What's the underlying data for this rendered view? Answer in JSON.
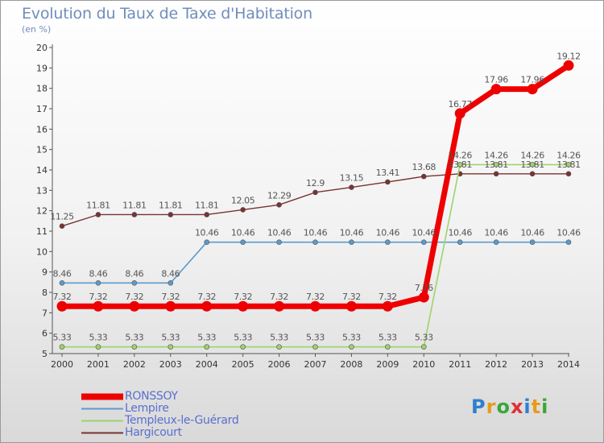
{
  "title": "Evolution du Taux de Taxe d'Habitation",
  "subtitle": "(en %)",
  "logo": {
    "text": "Proxiti",
    "letter_colors": [
      "#2f7fd0",
      "#e89a1a",
      "#3aa63a",
      "#e03030",
      "#2f7fd0",
      "#e89a1a",
      "#3aa63a"
    ]
  },
  "chart_data": {
    "type": "line",
    "x": [
      2000,
      2001,
      2002,
      2003,
      2004,
      2005,
      2006,
      2007,
      2008,
      2009,
      2010,
      2011,
      2012,
      2013,
      2014
    ],
    "ylim": [
      5,
      20
    ],
    "yticks": [
      5,
      6,
      7,
      8,
      9,
      10,
      11,
      12,
      13,
      14,
      15,
      16,
      17,
      18,
      19,
      20
    ],
    "grid": false,
    "legend_position": "bottom-left",
    "series": [
      {
        "name": "Hargicourt",
        "color": "#7a3232",
        "values": [
          11.25,
          11.81,
          11.81,
          11.81,
          11.81,
          12.05,
          12.29,
          12.9,
          13.15,
          13.41,
          13.68,
          13.81,
          13.81,
          13.81,
          13.81
        ],
        "labels": [
          "11.25",
          "11.81",
          "11.81",
          "11.81",
          "11.81",
          "12.05",
          "12.29",
          "12.9",
          "13.15",
          "13.41",
          "13.68",
          "13.81",
          "13.81",
          "13.81",
          "13.81"
        ]
      },
      {
        "name": "Lempire",
        "color": "#5d9acb",
        "values": [
          8.46,
          8.46,
          8.46,
          8.46,
          10.46,
          10.46,
          10.46,
          10.46,
          10.46,
          10.46,
          10.46,
          10.46,
          10.46,
          10.46,
          10.46
        ],
        "labels": [
          "8.46",
          "8.46",
          "8.46",
          "8.46",
          "10.46",
          "10.46",
          "10.46",
          "10.46",
          "10.46",
          "10.46",
          "10.46",
          "10.46",
          "10.46",
          "10.46",
          "10.46"
        ]
      },
      {
        "name": "Templeux-le-Guérard",
        "color": "#9ed36c",
        "values": [
          5.33,
          5.33,
          5.33,
          5.33,
          5.33,
          5.33,
          5.33,
          5.33,
          5.33,
          5.33,
          5.33,
          14.26,
          14.26,
          14.26,
          14.26
        ],
        "labels": [
          "5.33",
          "5.33",
          "5.33",
          "5.33",
          "5.33",
          "5.33",
          "5.33",
          "5.33",
          "5.33",
          "5.33",
          "5.33",
          "14.26",
          "14.26",
          "14.26",
          "14.26"
        ]
      },
      {
        "name": "RONSSOY",
        "color": "#ee0000",
        "values": [
          7.32,
          7.32,
          7.32,
          7.32,
          7.32,
          7.32,
          7.32,
          7.32,
          7.32,
          7.32,
          7.76,
          16.77,
          17.96,
          17.96,
          19.12
        ],
        "labels": [
          "7.32",
          "7.32",
          "7.32",
          "7.32",
          "7.32",
          "7.32",
          "7.32",
          "7.32",
          "7.32",
          "7.32",
          "7.76",
          "16.77",
          "17.96",
          "17.96",
          "19.12"
        ]
      }
    ],
    "legend_order": [
      "RONSSOY",
      "Lempire",
      "Templeux-le-Guérard",
      "Hargicourt"
    ]
  }
}
